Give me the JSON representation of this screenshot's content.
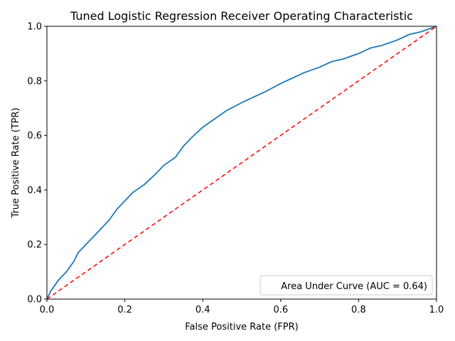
{
  "chart_data": {
    "type": "line",
    "title": "Tuned Logistic Regression Receiver Operating Characteristic",
    "xlabel": "False Positive Rate (FPR)",
    "ylabel": "True Positive Rate (TPR)",
    "xlim": [
      0,
      1
    ],
    "ylim": [
      0,
      1
    ],
    "xticks": [
      "0.0",
      "0.2",
      "0.4",
      "0.6",
      "0.8",
      "1.0"
    ],
    "yticks": [
      "0.0",
      "0.2",
      "0.4",
      "0.6",
      "0.8",
      "1.0"
    ],
    "grid": false,
    "legend": {
      "placement": "lower-right",
      "entries": [
        "Area Under Curve (AUC = 0.64)"
      ]
    },
    "series": [
      {
        "name": "Area Under Curve (AUC = 0.64)",
        "color": "#1f77b4",
        "style": "solid",
        "x": [
          0.0,
          0.01,
          0.02,
          0.03,
          0.05,
          0.07,
          0.08,
          0.1,
          0.12,
          0.14,
          0.16,
          0.18,
          0.2,
          0.22,
          0.25,
          0.28,
          0.3,
          0.33,
          0.35,
          0.37,
          0.4,
          0.43,
          0.46,
          0.5,
          0.53,
          0.56,
          0.6,
          0.63,
          0.66,
          0.7,
          0.73,
          0.76,
          0.8,
          0.83,
          0.86,
          0.9,
          0.93,
          0.96,
          0.98,
          1.0
        ],
        "y": [
          0.0,
          0.03,
          0.05,
          0.07,
          0.1,
          0.14,
          0.17,
          0.2,
          0.23,
          0.26,
          0.29,
          0.33,
          0.36,
          0.39,
          0.42,
          0.46,
          0.49,
          0.52,
          0.56,
          0.59,
          0.63,
          0.66,
          0.69,
          0.72,
          0.74,
          0.76,
          0.79,
          0.81,
          0.83,
          0.85,
          0.87,
          0.88,
          0.9,
          0.92,
          0.93,
          0.95,
          0.97,
          0.98,
          0.99,
          1.0
        ]
      },
      {
        "name": "",
        "color": "#ff0000",
        "style": "dashed",
        "x": [
          0,
          1
        ],
        "y": [
          0,
          1
        ]
      }
    ]
  }
}
